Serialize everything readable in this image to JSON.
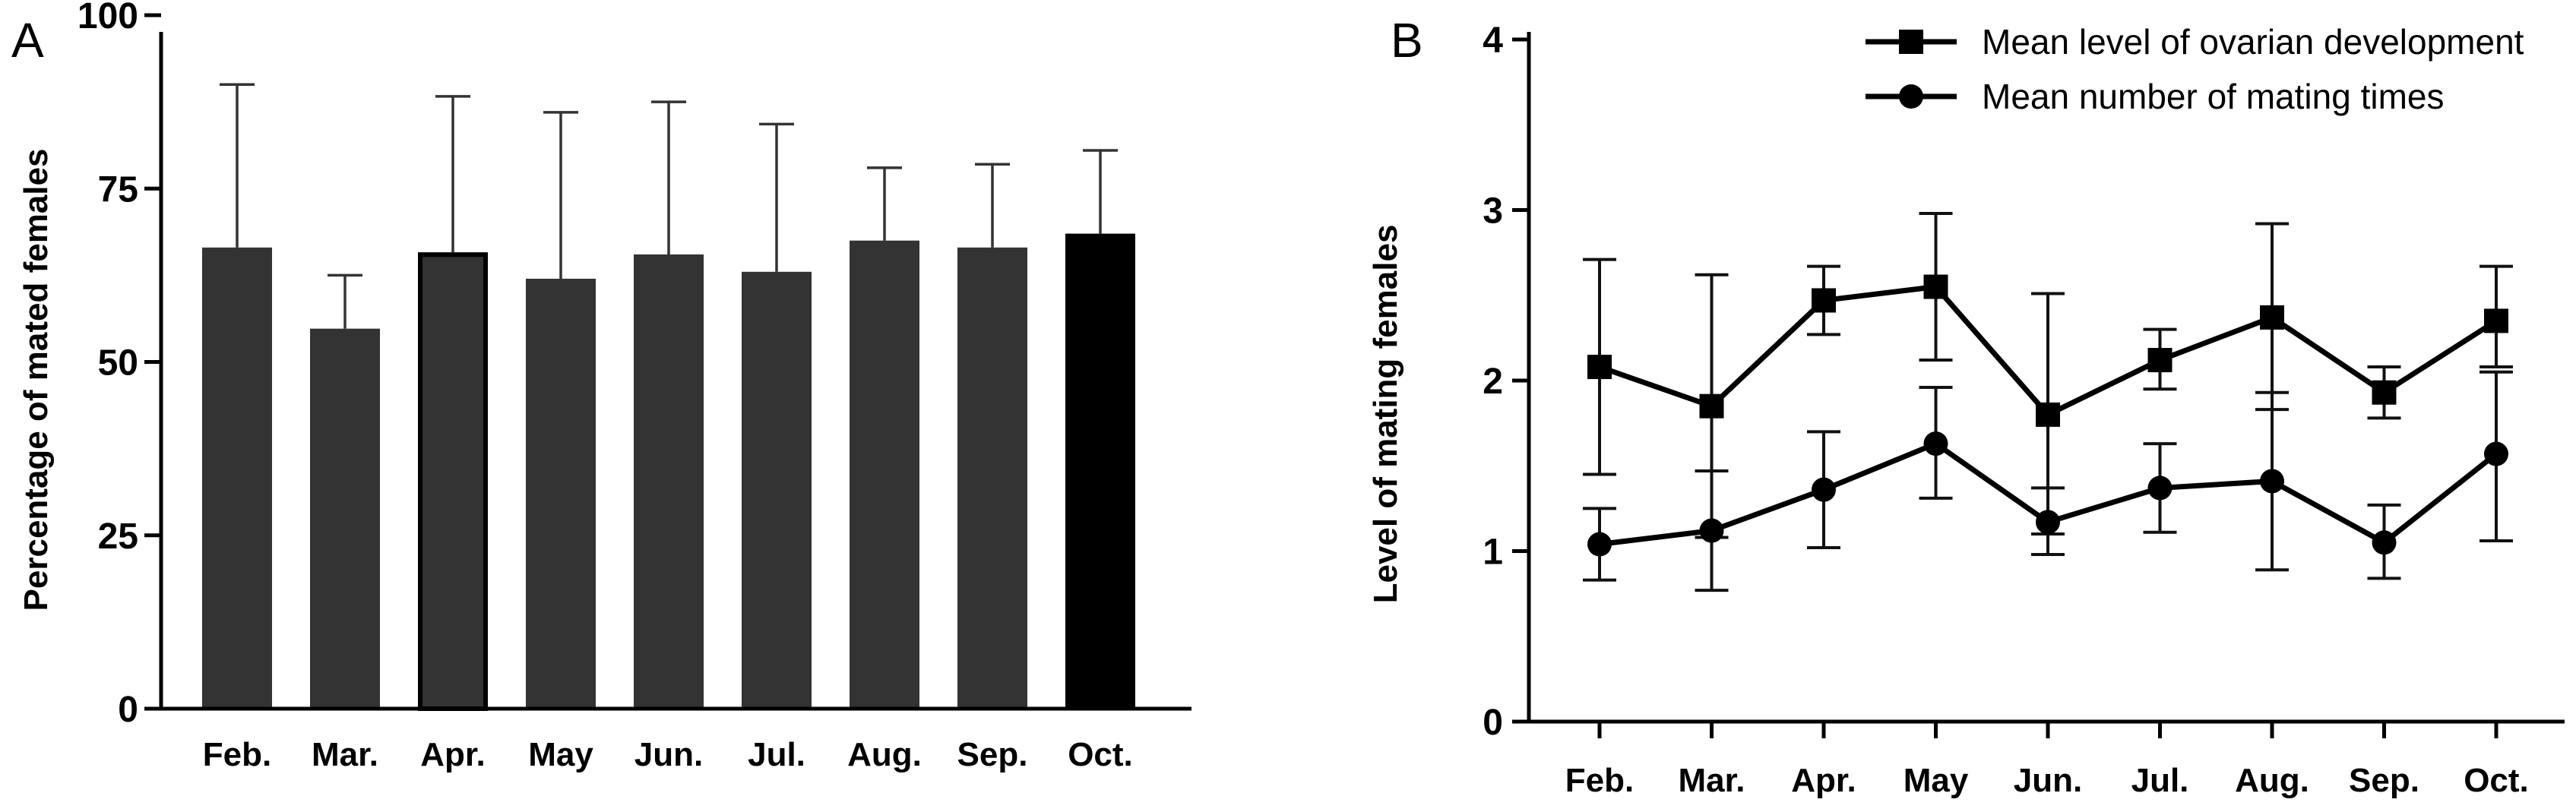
{
  "chart_data": [
    {
      "panel_label": "A",
      "type": "bar",
      "categories": [
        "Feb.",
        "Mar.",
        "Apr.",
        "May",
        "Jun.",
        "Jul.",
        "Aug.",
        "Sep.",
        "Oct."
      ],
      "values": [
        66.5,
        54.8,
        65.8,
        62.0,
        65.5,
        63.0,
        67.5,
        66.5,
        68.5
      ],
      "error_upper": [
        90.0,
        62.5,
        88.3,
        86.0,
        87.5,
        84.3,
        78.0,
        78.5,
        80.5
      ],
      "bar_colors": [
        "#333333",
        "#333333",
        "#333333",
        "#333333",
        "#333333",
        "#333333",
        "#333333",
        "#333333",
        "#000000"
      ],
      "ylabel": "Percentage of mated females",
      "xlabel": "",
      "ylim": [
        0,
        100
      ],
      "yticks": [
        0,
        25,
        50,
        75,
        100
      ]
    },
    {
      "panel_label": "B",
      "type": "line",
      "categories": [
        "Feb.",
        "Mar.",
        "Apr.",
        "May",
        "Jun.",
        "Jul.",
        "Aug.",
        "Sep.",
        "Oct."
      ],
      "series": [
        {
          "name": "Mean level of ovarian development",
          "marker": "square",
          "values": [
            2.08,
            1.85,
            2.47,
            2.55,
            1.8,
            2.12,
            2.37,
            1.93,
            2.35
          ],
          "error_low": [
            1.45,
            1.08,
            2.27,
            2.12,
            1.1,
            1.95,
            1.83,
            1.78,
            2.08
          ],
          "error_high": [
            2.71,
            2.62,
            2.67,
            2.98,
            2.51,
            2.3,
            2.92,
            2.08,
            2.67
          ]
        },
        {
          "name": "Mean number of mating times",
          "marker": "circle",
          "values": [
            1.04,
            1.12,
            1.36,
            1.63,
            1.17,
            1.37,
            1.41,
            1.05,
            1.57
          ],
          "error_low": [
            0.83,
            0.77,
            1.02,
            1.31,
            0.98,
            1.11,
            0.89,
            0.84,
            1.06
          ],
          "error_high": [
            1.25,
            1.47,
            1.7,
            1.96,
            1.37,
            1.63,
            1.93,
            1.27,
            2.05
          ]
        }
      ],
      "ylabel": "Level of mating females",
      "xlabel": "",
      "ylim": [
        0,
        4
      ],
      "yticks": [
        0,
        1,
        2,
        3,
        4
      ],
      "legend_position": "top-right"
    }
  ]
}
